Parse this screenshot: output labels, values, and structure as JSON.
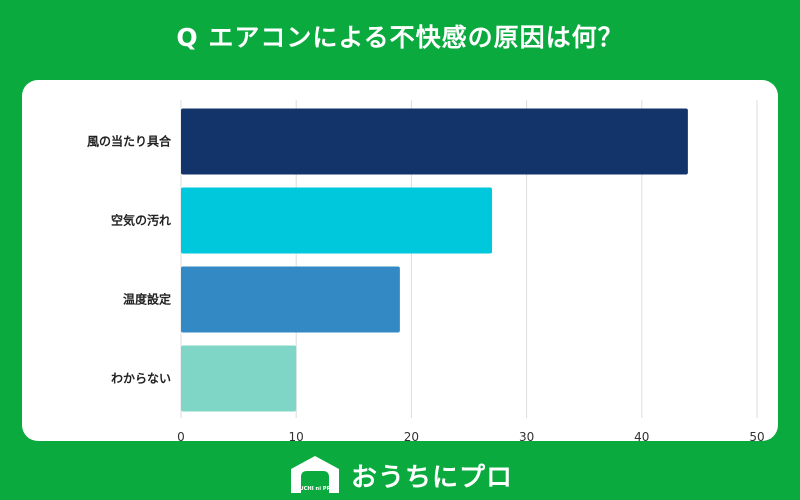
{
  "title": "Q エアコンによる不快感の原因は何？",
  "brand": {
    "name": "おうちにプロ",
    "logo_text": "OUCHI ni PRO"
  },
  "colors": {
    "background": "#0aaa3f",
    "grid": "#dddddd"
  },
  "chart_data": {
    "type": "bar",
    "orientation": "horizontal",
    "categories": [
      "風の当たり具合",
      "空気の汚れ",
      "温度設定",
      "わからない"
    ],
    "values": [
      44,
      27,
      19,
      10
    ],
    "bar_colors": [
      "#12346b",
      "#00c8dc",
      "#3289c3",
      "#7fd6c6"
    ],
    "xlim": [
      0,
      50
    ],
    "xticks": [
      0,
      10,
      20,
      30,
      40,
      50
    ],
    "grid": true,
    "title": "Q エアコンによる不快感の原因は何？",
    "xlabel": "",
    "ylabel": ""
  }
}
